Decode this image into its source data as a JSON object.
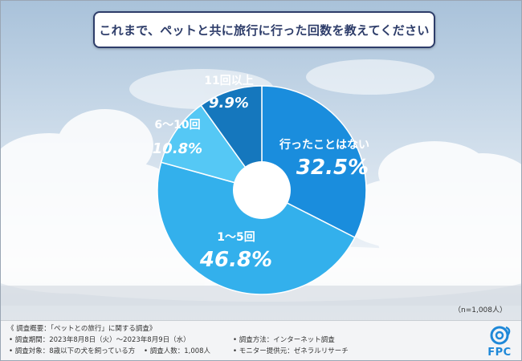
{
  "title": "これまで、ペットと共に旅行に行った回数を教えてください",
  "sample_note": "（n=1,008人）",
  "chart_data": {
    "type": "pie",
    "style": "donut",
    "start": "top, clockwise",
    "categories": [
      "行ったことはない",
      "1～5回",
      "6～10回",
      "11回以上"
    ],
    "values": [
      32.5,
      46.8,
      10.8,
      9.9
    ],
    "value_labels": [
      "32.5%",
      "46.8%",
      "10.8%",
      "9.9%"
    ],
    "unit": "%",
    "colors": [
      "#1a8ddd",
      "#33b0ec",
      "#55c8f5",
      "#1577bd"
    ],
    "n": 1008
  },
  "survey": {
    "title": "《 調査概要：「ペットとの旅行」に関する調査》",
    "items": [
      "調査期間：2023年8月8日（火）～2023年8月9日（水）",
      "調査方法：インターネット調査",
      "調査対象：8歳以下の犬を飼っている方",
      "調査人数：1,008人",
      "モニター提供元：ゼネラルリサーチ"
    ]
  },
  "logo": {
    "text": "FPC",
    "color": "#1e88d8"
  }
}
